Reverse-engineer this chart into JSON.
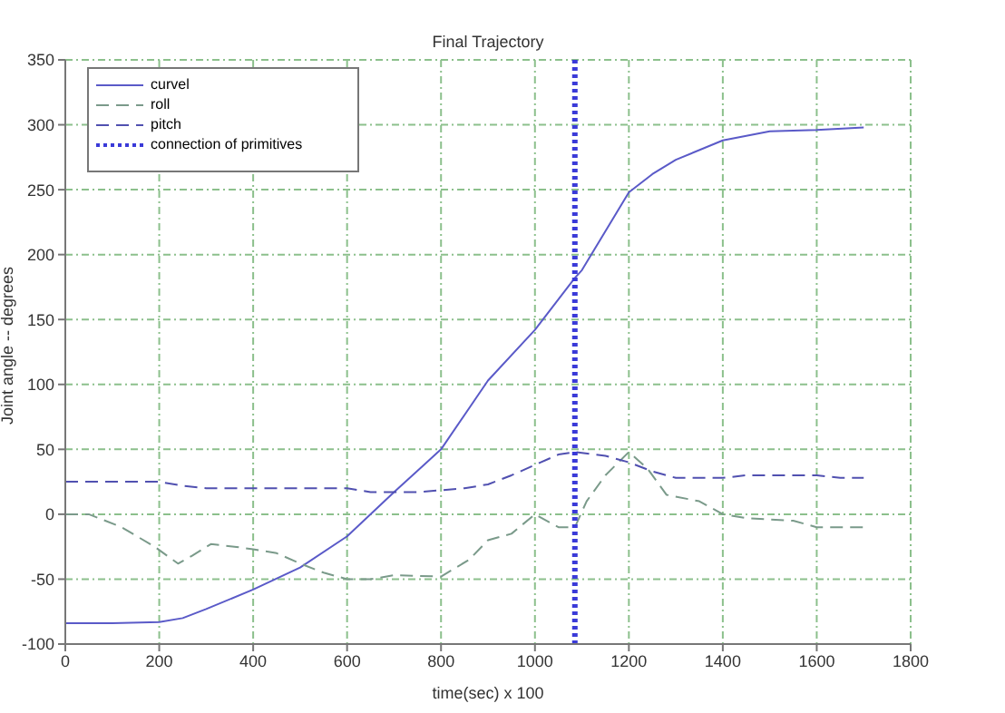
{
  "chart_data": {
    "type": "line",
    "title": "Final Trajectory",
    "xlabel": "time(sec) x 100",
    "ylabel": "Joint angle -- degrees",
    "xlim": [
      0,
      1800
    ],
    "xticks": [
      0,
      200,
      400,
      600,
      800,
      1000,
      1200,
      1400,
      1600,
      1800
    ],
    "ylim": [
      -100,
      350
    ],
    "yticks": [
      -100,
      -50,
      0,
      50,
      100,
      150,
      200,
      250,
      300,
      350
    ],
    "grid": true,
    "legend": "top left",
    "marker": "none",
    "series": [
      {
        "name": "curvel",
        "color": "#5a5ac8",
        "line_style": "solid",
        "x": [
          0,
          100,
          200,
          250,
          300,
          400,
          500,
          600,
          700,
          800,
          900,
          1000,
          1085,
          1100,
          1200,
          1250,
          1300,
          1400,
          1500,
          1600,
          1700
        ],
        "values": [
          -84,
          -84,
          -83,
          -80,
          -73,
          -58,
          -41,
          -17,
          17,
          50,
          103,
          142,
          182,
          188,
          248,
          262,
          273,
          288,
          295,
          296,
          298
        ]
      },
      {
        "name": "roll",
        "color": "#7a9a8a",
        "line_style": "dashed",
        "x": [
          0,
          50,
          120,
          190,
          240,
          270,
          310,
          360,
          400,
          450,
          500,
          550,
          600,
          650,
          700,
          800,
          860,
          900,
          950,
          1000,
          1050,
          1085,
          1110,
          1150,
          1200,
          1240,
          1280,
          1350,
          1400,
          1450,
          1550,
          1600,
          1700
        ],
        "values": [
          0,
          0,
          -10,
          -25,
          -38,
          -32,
          -23,
          -25,
          -27,
          -30,
          -38,
          -45,
          -50,
          -50,
          -47,
          -48,
          -35,
          -20,
          -15,
          0,
          -10,
          -10,
          10,
          30,
          48,
          35,
          15,
          10,
          0,
          -3,
          -5,
          -10,
          -10
        ]
      },
      {
        "name": "pitch",
        "color": "#5050b0",
        "line_style": "dashed",
        "x": [
          0,
          200,
          250,
          300,
          600,
          650,
          750,
          850,
          900,
          950,
          1000,
          1050,
          1085,
          1150,
          1200,
          1250,
          1300,
          1400,
          1450,
          1600,
          1650,
          1700
        ],
        "values": [
          25,
          25,
          22,
          20,
          20,
          17,
          17,
          20,
          23,
          30,
          38,
          46,
          48,
          45,
          40,
          33,
          28,
          28,
          30,
          30,
          28,
          28
        ]
      },
      {
        "name": "connection of primitives",
        "color": "#3a3ad8",
        "line_style": "dotted",
        "x": [
          1085,
          1085
        ],
        "values": [
          -100,
          350
        ]
      }
    ]
  }
}
